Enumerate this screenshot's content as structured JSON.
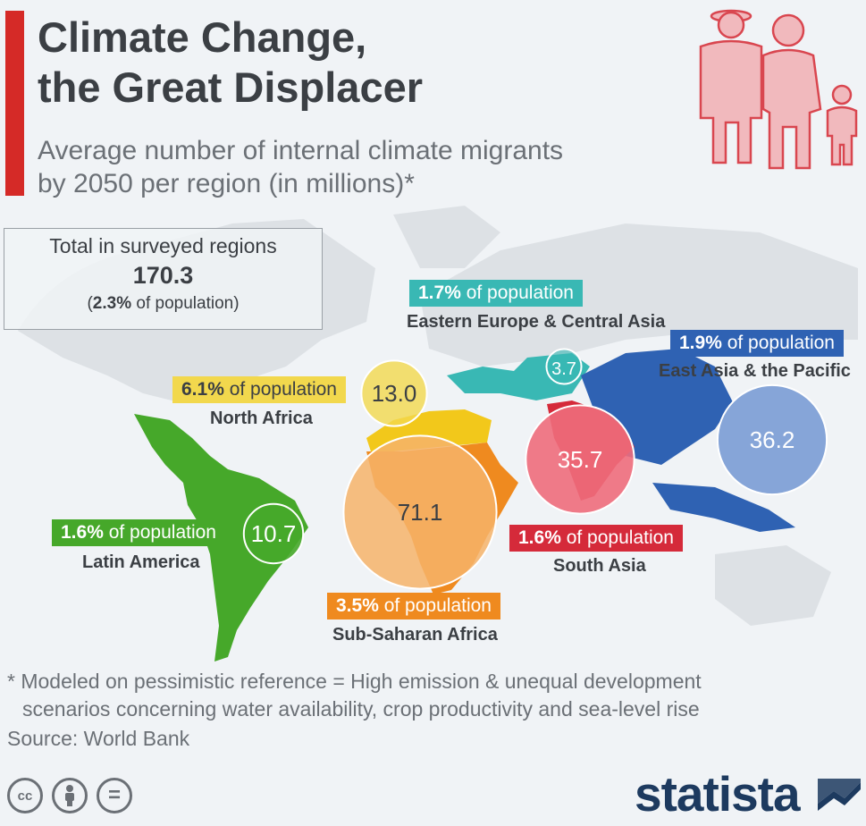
{
  "header": {
    "title_line1": "Climate Change,",
    "title_line2": "the Great Displacer",
    "subtitle_line1": "Average number of internal climate migrants",
    "subtitle_line2": "by 2050 per region (in millions)*"
  },
  "total": {
    "label": "Total in surveyed regions",
    "value": "170.3",
    "share": "2.3%",
    "share_suffix": " of population)",
    "share_prefix": "("
  },
  "chart_data": {
    "type": "bubble-map",
    "title": "Climate Change, the Great Displacer",
    "subtitle": "Average number of internal climate migrants by 2050 per region (in millions)*",
    "unit": "millions",
    "total": 170.3,
    "total_share_of_population_pct": 2.3,
    "series": [
      {
        "name": "Latin America",
        "value": 10.7,
        "value_label": "10.7",
        "share": "1.6%",
        "color": "#46a82a"
      },
      {
        "name": "North Africa",
        "value": 13.0,
        "value_label": "13.0",
        "share": "6.1%",
        "color": "#f2c81b"
      },
      {
        "name": "Sub-Saharan Africa",
        "value": 71.1,
        "value_label": "71.1",
        "share": "3.5%",
        "color": "#ef8a1f"
      },
      {
        "name": "Eastern Europe & Central Asia",
        "value": 3.7,
        "value_label": "3.7",
        "share": "1.7%",
        "color": "#39b8b4"
      },
      {
        "name": "South Asia",
        "value": 35.7,
        "value_label": "35.7",
        "share": "1.6%",
        "color": "#d52a3a"
      },
      {
        "name": "East Asia & the Pacific",
        "value": 36.2,
        "value_label": "36.2",
        "share": "1.9%",
        "color": "#2f62b3"
      }
    ],
    "share_suffix": " of population"
  },
  "footnote": {
    "line1": "* Modeled on pessimistic reference = High emission & unequal development",
    "line2": "scenarios concerning water availability, crop productivity and sea-level rise"
  },
  "source": "Source: World Bank",
  "brand": "statista",
  "license_icons": [
    "cc-icon",
    "attribution-icon",
    "no-derivatives-icon"
  ],
  "license_glyphs": [
    "cc",
    "=",
    "="
  ],
  "colors": {
    "accent": "#d52a27",
    "text_dark": "#3b3f44",
    "text_muted": "#6b7076",
    "brand_navy": "#1d3a5f",
    "background": "#f0f3f6"
  }
}
